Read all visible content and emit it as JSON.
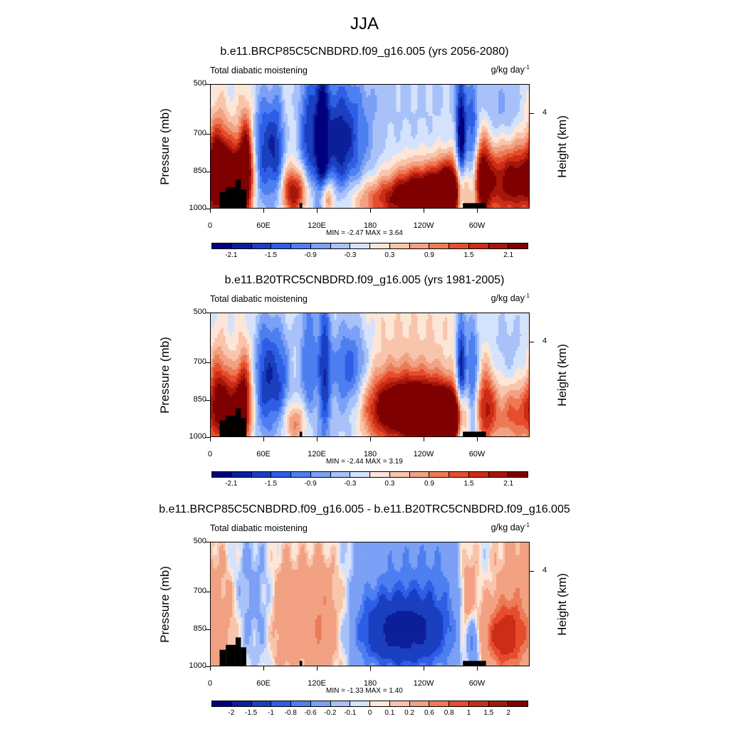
{
  "page_title": "JJA",
  "colors": [
    "#00007f",
    "#0c1f99",
    "#1a3fbf",
    "#2e5ee6",
    "#4d7ff0",
    "#7ba0f5",
    "#a8c2f9",
    "#d4e2fc",
    "#fde6d7",
    "#f8c5ab",
    "#f2a183",
    "#ec7a57",
    "#e54d2d",
    "#cc2d16",
    "#a5160b",
    "#7f0000"
  ],
  "chart_data": [
    {
      "type": "heatmap",
      "title": "b.e11.BRCP85C5CNBDRD.f09_g16.005 (yrs 2056-2080)",
      "variable": "Total diabatic moistening",
      "units_base": "g/kg day",
      "units_exp": "-1",
      "ylabel": "Pressure (mb)",
      "ylabel_right": "Height (km)",
      "yticks": [
        "500",
        "700",
        "850",
        "1000"
      ],
      "yticks_right": [
        "4"
      ],
      "xticks": [
        "0",
        "60E",
        "120E",
        "180",
        "120W",
        "60W"
      ],
      "ylim": [
        1000,
        500
      ],
      "xlim": [
        0,
        360
      ],
      "stats": "MIN =  -2.47  MAX =   3.64",
      "colorbar_labels": [
        "-2.1",
        "-1.5",
        "-0.9",
        "-0.3",
        "0.3",
        "0.9",
        "1.5",
        "2.1"
      ],
      "features": [
        {
          "lon": 25,
          "p": 870,
          "w": 12,
          "h": 110,
          "v": 2.2
        },
        {
          "lon": 40,
          "p": 820,
          "w": 6,
          "h": 150,
          "v": 2.5
        },
        {
          "lon": 8,
          "p": 800,
          "w": 8,
          "h": 150,
          "v": 1.6
        },
        {
          "lon": 60,
          "p": 760,
          "w": 10,
          "h": 170,
          "v": -1.6
        },
        {
          "lon": 75,
          "p": 780,
          "w": 6,
          "h": 180,
          "v": -1.2
        },
        {
          "lon": 95,
          "p": 930,
          "w": 12,
          "h": 70,
          "v": 2.2
        },
        {
          "lon": 110,
          "p": 720,
          "w": 8,
          "h": 240,
          "v": -1.4
        },
        {
          "lon": 125,
          "p": 720,
          "w": 5,
          "h": 260,
          "v": -1.8
        },
        {
          "lon": 140,
          "p": 740,
          "w": 15,
          "h": 200,
          "v": -1.3
        },
        {
          "lon": 160,
          "p": 730,
          "w": 18,
          "h": 180,
          "v": -0.9
        },
        {
          "lon": 130,
          "p": 950,
          "w": 6,
          "h": 60,
          "v": 1.6
        },
        {
          "lon": 200,
          "p": 960,
          "w": 40,
          "h": 60,
          "v": 1.4
        },
        {
          "lon": 240,
          "p": 930,
          "w": 25,
          "h": 80,
          "v": 2.5
        },
        {
          "lon": 270,
          "p": 920,
          "w": 12,
          "h": 90,
          "v": 2.4
        },
        {
          "lon": 282,
          "p": 760,
          "w": 4,
          "h": 230,
          "v": -2.4
        },
        {
          "lon": 295,
          "p": 800,
          "w": 5,
          "h": 200,
          "v": -1.7
        },
        {
          "lon": 305,
          "p": 860,
          "w": 8,
          "h": 140,
          "v": 2.0
        },
        {
          "lon": 340,
          "p": 880,
          "w": 25,
          "h": 110,
          "v": 2.6
        },
        {
          "lon": 325,
          "p": 650,
          "w": 20,
          "h": 140,
          "v": -0.6
        },
        {
          "lon": 220,
          "p": 550,
          "w": 80,
          "h": 200,
          "v": -0.35
        }
      ],
      "terrain": [
        {
          "lon0": 10,
          "lon1": 17,
          "p": 930
        },
        {
          "lon0": 17,
          "lon1": 28,
          "p": 910
        },
        {
          "lon0": 28,
          "lon1": 34,
          "p": 880
        },
        {
          "lon0": 34,
          "lon1": 40,
          "p": 920
        },
        {
          "lon0": 100,
          "lon1": 103,
          "p": 975
        },
        {
          "lon0": 284,
          "lon1": 310,
          "p": 975
        }
      ]
    },
    {
      "type": "heatmap",
      "title": "b.e11.B20TRC5CNBDRD.f09_g16.005 (yrs 1981-2005)",
      "variable": "Total diabatic moistening",
      "units_base": "g/kg day",
      "units_exp": "-1",
      "ylabel": "Pressure (mb)",
      "ylabel_right": "Height (km)",
      "yticks": [
        "500",
        "700",
        "850",
        "1000"
      ],
      "yticks_right": [
        "4"
      ],
      "xticks": [
        "0",
        "60E",
        "120E",
        "180",
        "120W",
        "60W"
      ],
      "ylim": [
        1000,
        500
      ],
      "xlim": [
        0,
        360
      ],
      "stats": "MIN =  -2.44  MAX =   3.19",
      "colorbar_labels": [
        "-2.1",
        "-1.5",
        "-0.9",
        "-0.3",
        "0.3",
        "0.9",
        "1.5",
        "2.1"
      ],
      "features": [
        {
          "lon": 25,
          "p": 880,
          "w": 12,
          "h": 100,
          "v": 2.0
        },
        {
          "lon": 38,
          "p": 830,
          "w": 6,
          "h": 140,
          "v": 1.7
        },
        {
          "lon": 8,
          "p": 800,
          "w": 8,
          "h": 140,
          "v": 1.4
        },
        {
          "lon": 62,
          "p": 760,
          "w": 10,
          "h": 180,
          "v": -1.7
        },
        {
          "lon": 80,
          "p": 780,
          "w": 8,
          "h": 180,
          "v": -1.1
        },
        {
          "lon": 95,
          "p": 940,
          "w": 12,
          "h": 60,
          "v": 1.2
        },
        {
          "lon": 110,
          "p": 700,
          "w": 8,
          "h": 260,
          "v": -1.2
        },
        {
          "lon": 128,
          "p": 720,
          "w": 5,
          "h": 260,
          "v": -1.5
        },
        {
          "lon": 150,
          "p": 760,
          "w": 15,
          "h": 180,
          "v": -1.2
        },
        {
          "lon": 165,
          "p": 770,
          "w": 12,
          "h": 160,
          "v": -0.8
        },
        {
          "lon": 210,
          "p": 880,
          "w": 35,
          "h": 100,
          "v": 2.6
        },
        {
          "lon": 250,
          "p": 900,
          "w": 25,
          "h": 90,
          "v": 2.2
        },
        {
          "lon": 270,
          "p": 920,
          "w": 10,
          "h": 70,
          "v": 2.8
        },
        {
          "lon": 282,
          "p": 780,
          "w": 4,
          "h": 230,
          "v": -2.2
        },
        {
          "lon": 295,
          "p": 800,
          "w": 5,
          "h": 200,
          "v": -1.6
        },
        {
          "lon": 310,
          "p": 860,
          "w": 8,
          "h": 130,
          "v": 1.6
        },
        {
          "lon": 345,
          "p": 900,
          "w": 20,
          "h": 90,
          "v": 1.4
        },
        {
          "lon": 330,
          "p": 650,
          "w": 25,
          "h": 150,
          "v": -0.5
        },
        {
          "lon": 225,
          "p": 600,
          "w": 60,
          "h": 160,
          "v": 0.3
        }
      ],
      "terrain": [
        {
          "lon0": 10,
          "lon1": 17,
          "p": 930
        },
        {
          "lon0": 17,
          "lon1": 28,
          "p": 910
        },
        {
          "lon0": 28,
          "lon1": 34,
          "p": 880
        },
        {
          "lon0": 34,
          "lon1": 40,
          "p": 920
        },
        {
          "lon0": 100,
          "lon1": 103,
          "p": 975
        },
        {
          "lon0": 284,
          "lon1": 310,
          "p": 975
        }
      ]
    },
    {
      "type": "heatmap",
      "title": "b.e11.BRCP85C5CNBDRD.f09_g16.005 - b.e11.B20TRC5CNBDRD.f09_g16.005",
      "variable": "Total diabatic moistening",
      "units_base": "g/kg day",
      "units_exp": "-1",
      "ylabel": "Pressure (mb)",
      "ylabel_right": "Height (km)",
      "yticks": [
        "500",
        "700",
        "850",
        "1000"
      ],
      "yticks_right": [
        "4"
      ],
      "xticks": [
        "0",
        "60E",
        "120E",
        "180",
        "120W",
        "60W"
      ],
      "ylim": [
        1000,
        500
      ],
      "xlim": [
        0,
        360
      ],
      "stats": "MIN =  -1.33  MAX =   1.40",
      "colorbar_labels": [
        "-2",
        "-1.5",
        "-1",
        "-0.8",
        "-0.6",
        "-0.2",
        "-0.1",
        "0",
        "0.1",
        "0.2",
        "0.6",
        "0.8",
        "1",
        "1.5",
        "2"
      ],
      "diff_levels": [
        -2,
        -1.5,
        -1,
        -0.8,
        -0.6,
        -0.2,
        -0.1,
        0,
        0.1,
        0.2,
        0.6,
        0.8,
        1,
        1.5,
        2
      ],
      "features": [
        {
          "lon": 20,
          "p": 820,
          "w": 10,
          "h": 160,
          "v": 0.25
        },
        {
          "lon": 40,
          "p": 700,
          "w": 12,
          "h": 200,
          "v": -0.25
        },
        {
          "lon": 60,
          "p": 750,
          "w": 10,
          "h": 200,
          "v": -0.15
        },
        {
          "lon": 80,
          "p": 800,
          "w": 10,
          "h": 180,
          "v": 0.4
        },
        {
          "lon": 100,
          "p": 780,
          "w": 12,
          "h": 200,
          "v": 0.3
        },
        {
          "lon": 125,
          "p": 800,
          "w": 12,
          "h": 200,
          "v": 0.7
        },
        {
          "lon": 150,
          "p": 790,
          "w": 12,
          "h": 200,
          "v": 0.35
        },
        {
          "lon": 215,
          "p": 860,
          "w": 35,
          "h": 100,
          "v": -1.3
        },
        {
          "lon": 205,
          "p": 700,
          "w": 50,
          "h": 280,
          "v": -0.55
        },
        {
          "lon": 258,
          "p": 700,
          "w": 25,
          "h": 260,
          "v": -0.3
        },
        {
          "lon": 295,
          "p": 900,
          "w": 5,
          "h": 80,
          "v": -1.0
        },
        {
          "lon": 290,
          "p": 760,
          "w": 8,
          "h": 200,
          "v": 0.7
        },
        {
          "lon": 330,
          "p": 880,
          "w": 18,
          "h": 100,
          "v": 1.1
        },
        {
          "lon": 345,
          "p": 700,
          "w": 20,
          "h": 220,
          "v": 0.4
        }
      ],
      "terrain": [
        {
          "lon0": 10,
          "lon1": 17,
          "p": 930
        },
        {
          "lon0": 17,
          "lon1": 28,
          "p": 910
        },
        {
          "lon0": 28,
          "lon1": 34,
          "p": 880
        },
        {
          "lon0": 34,
          "lon1": 40,
          "p": 920
        },
        {
          "lon0": 100,
          "lon1": 103,
          "p": 975
        },
        {
          "lon0": 284,
          "lon1": 310,
          "p": 975
        }
      ]
    }
  ]
}
